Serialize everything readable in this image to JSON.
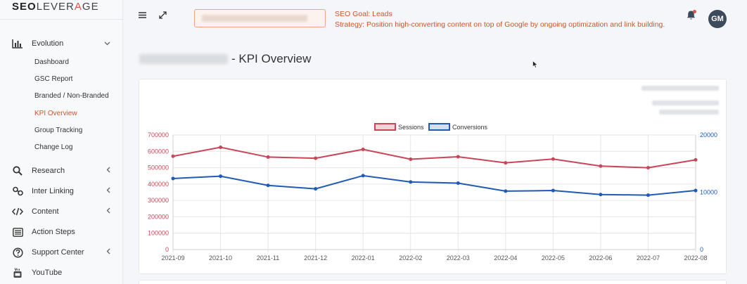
{
  "brand": {
    "part1": "SEO",
    "part2": "LEVER",
    "part3": "A",
    "part4": "GE"
  },
  "sidebar": {
    "evolution": {
      "label": "Evolution",
      "children": [
        "Dashboard",
        "GSC Report",
        "Branded / Non-Branded",
        "KPI Overview",
        "Group Tracking",
        "Change Log"
      ]
    },
    "items": [
      {
        "label": "Research",
        "icon": "search-icon"
      },
      {
        "label": "Inter Linking",
        "icon": "link-icon"
      },
      {
        "label": "Content",
        "icon": "code-icon"
      },
      {
        "label": "Action Steps",
        "icon": "list-icon"
      },
      {
        "label": "Support Center",
        "icon": "question-icon"
      },
      {
        "label": "YouTube",
        "icon": "youtube-icon"
      }
    ]
  },
  "header": {
    "goal_line": "SEO Goal: Leads",
    "strategy_line": "Strategy: Position high-converting content on top of Google by ongoing optimization and link building.",
    "avatar_initials": "GM"
  },
  "page": {
    "title_suffix": "- KPI Overview"
  },
  "colors": {
    "accent": "#d1542b",
    "sessions": "#c94558",
    "conversions": "#1f5bb5"
  },
  "chart_data": {
    "type": "line",
    "categories": [
      "2021-09",
      "2021-10",
      "2021-11",
      "2021-12",
      "2022-01",
      "2022-02",
      "2022-03",
      "2022-04",
      "2022-05",
      "2022-06",
      "2022-07",
      "2022-08"
    ],
    "series": [
      {
        "name": "Sessions",
        "axis": "left",
        "values": [
          570000,
          625000,
          565000,
          558000,
          612000,
          552000,
          567000,
          530000,
          553000,
          510000,
          500000,
          548000
        ]
      },
      {
        "name": "Conversions",
        "axis": "right",
        "values": [
          12400,
          12800,
          11200,
          10600,
          12900,
          11800,
          11600,
          10200,
          10300,
          9600,
          9500,
          10300
        ]
      }
    ],
    "y_left": {
      "min": 0,
      "max": 700000,
      "ticks": [
        "0",
        "100000",
        "200000",
        "300000",
        "400000",
        "500000",
        "600000",
        "700000"
      ]
    },
    "y_right": {
      "min": 0,
      "max": 20000,
      "ticks": [
        "0",
        "10000",
        "20000"
      ]
    },
    "legend": "top-center",
    "grid": true
  }
}
